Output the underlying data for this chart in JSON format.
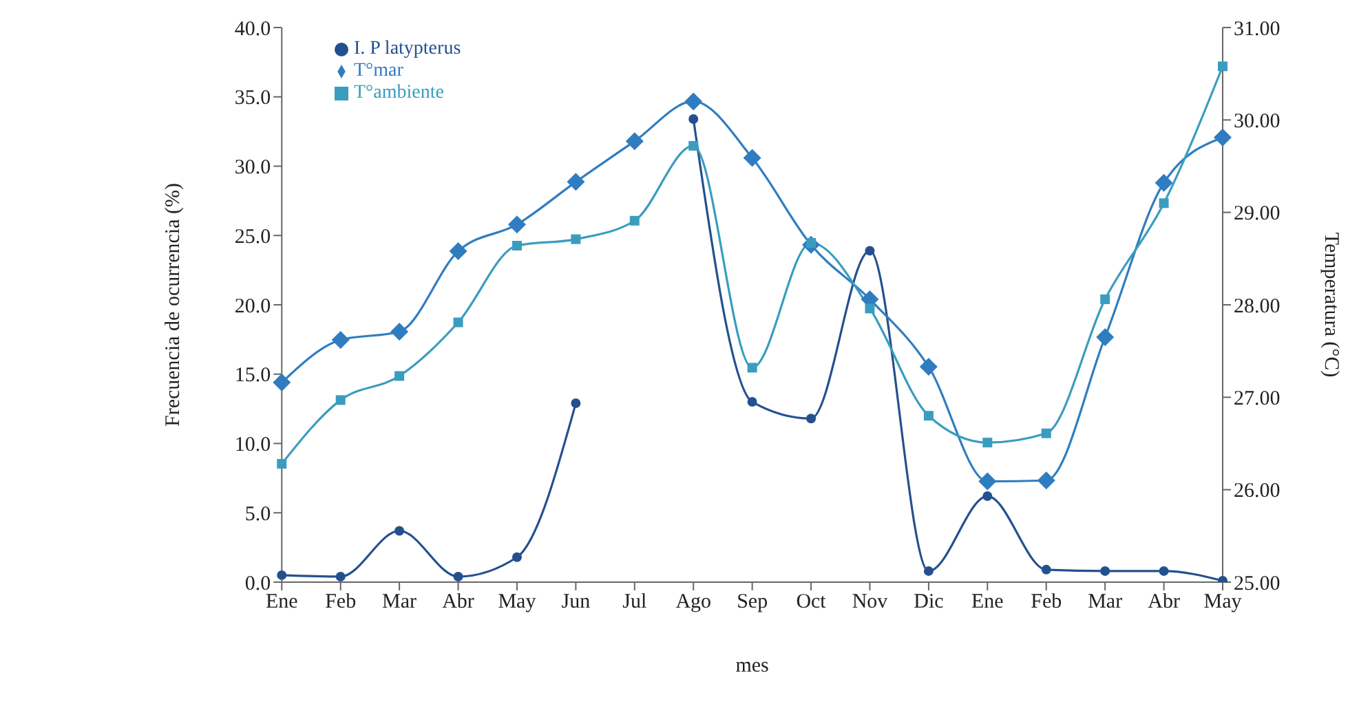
{
  "chart_data": {
    "type": "line",
    "xlabel": "mes",
    "ylabel": "Frecuencia de ocurrencia (%)",
    "y2label": "Temperatura (°C)",
    "categories": [
      "Ene",
      "Feb",
      "Mar",
      "Abr",
      "May",
      "Jun",
      "Jul",
      "Ago",
      "Sep",
      "Oct",
      "Nov",
      "Dic",
      "Ene",
      "Feb",
      "Mar",
      "Abr",
      "May"
    ],
    "series": [
      {
        "name": "I. P latypterus",
        "color": "#24508f",
        "marker": "circle",
        "values": [
          0.5,
          0.4,
          3.7,
          0.4,
          1.8,
          12.9,
          null,
          33.4,
          13.0,
          11.8,
          23.9,
          0.8,
          6.2,
          0.9,
          0.8,
          0.8,
          0.1
        ]
      },
      {
        "name": "T°mar",
        "color": "#2f7dc0",
        "marker": "diamond",
        "axis": "y2",
        "values": [
          27.16,
          27.62,
          27.71,
          28.58,
          28.87,
          29.33,
          29.77,
          30.2,
          29.59,
          28.65,
          28.06,
          27.33,
          26.09,
          26.1,
          27.65,
          29.32,
          29.81
        ]
      },
      {
        "name": "T°ambiente",
        "color": "#3a9dbf",
        "marker": "square",
        "axis": "y2",
        "values": [
          26.28,
          26.97,
          27.23,
          27.81,
          28.64,
          28.71,
          28.91,
          29.72,
          27.32,
          28.67,
          27.96,
          26.8,
          26.51,
          26.61,
          28.06,
          29.1,
          30.58
        ]
      }
    ],
    "ylim": [
      0,
      40
    ],
    "yticks": [
      {
        "value": 0,
        "label": "0.0"
      },
      {
        "value": 5,
        "label": "5.0"
      },
      {
        "value": 10,
        "label": "10.0"
      },
      {
        "value": 15,
        "label": "15.0"
      },
      {
        "value": 20,
        "label": "20.0"
      },
      {
        "value": 25,
        "label": "25.0"
      },
      {
        "value": 30,
        "label": "30.0"
      },
      {
        "value": 35,
        "label": "35.0"
      },
      {
        "value": 40,
        "label": "40.0"
      }
    ],
    "y2lim": [
      25,
      31
    ],
    "y2ticks": [
      {
        "value": 25,
        "label": "25.00"
      },
      {
        "value": 26,
        "label": "26.00"
      },
      {
        "value": 27,
        "label": "27.00"
      },
      {
        "value": 28,
        "label": "28.00"
      },
      {
        "value": 29,
        "label": "29.00"
      },
      {
        "value": 30,
        "label": "30.00"
      },
      {
        "value": 31,
        "label": "31.00"
      }
    ],
    "grid": false,
    "legend": "top left"
  }
}
